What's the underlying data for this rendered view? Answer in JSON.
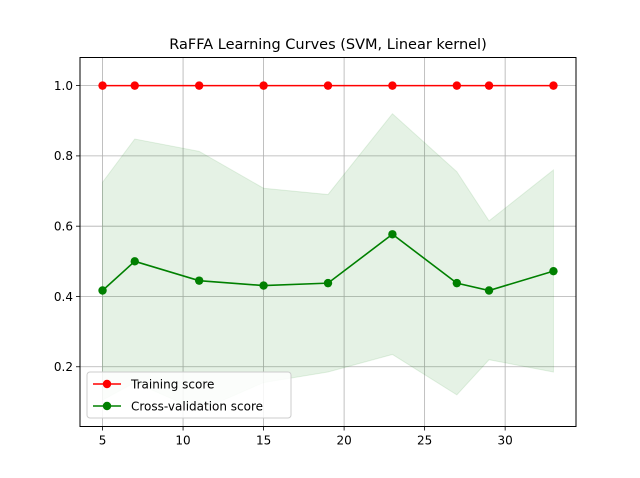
{
  "chart_data": {
    "type": "line",
    "title": "RaFFA Learning Curves (SVM, Linear kernel)",
    "xlabel": "",
    "ylabel": "",
    "x": [
      5,
      7,
      11,
      15,
      19,
      23,
      27,
      29,
      33
    ],
    "xlim": [
      3.6,
      34.4
    ],
    "ylim": [
      0.03,
      1.08
    ],
    "xticks": [
      5,
      10,
      15,
      20,
      25,
      30
    ],
    "yticks": [
      0.2,
      0.4,
      0.6,
      0.8,
      1.0
    ],
    "xtick_labels": [
      "5",
      "10",
      "15",
      "20",
      "25",
      "30"
    ],
    "ytick_labels": [
      "0.2",
      "0.4",
      "0.6",
      "0.8",
      "1.0"
    ],
    "grid": true,
    "legend_position": "lower-left",
    "series": [
      {
        "name": "Training score",
        "color": "#ff0000",
        "values": [
          1.0,
          1.0,
          1.0,
          1.0,
          1.0,
          1.0,
          1.0,
          1.0,
          1.0
        ],
        "band_lower": [
          1.0,
          1.0,
          1.0,
          1.0,
          1.0,
          1.0,
          1.0,
          1.0,
          1.0
        ],
        "band_upper": [
          1.0,
          1.0,
          1.0,
          1.0,
          1.0,
          1.0,
          1.0,
          1.0,
          1.0
        ]
      },
      {
        "name": "Cross-validation score",
        "color": "#008000",
        "values": [
          0.417,
          0.5,
          0.445,
          0.431,
          0.438,
          0.577,
          0.438,
          0.417,
          0.472
        ],
        "band_lower": [
          0.105,
          0.155,
          0.075,
          0.155,
          0.185,
          0.235,
          0.12,
          0.22,
          0.185
        ],
        "band_upper": [
          0.725,
          0.848,
          0.813,
          0.708,
          0.69,
          0.92,
          0.755,
          0.615,
          0.76
        ]
      }
    ]
  }
}
